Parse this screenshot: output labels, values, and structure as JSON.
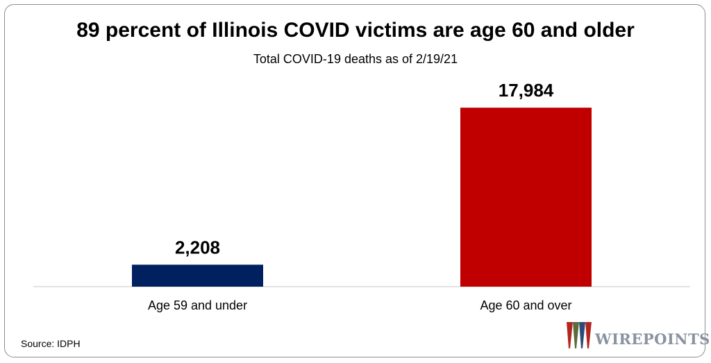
{
  "title": "89 percent of Illinois COVID victims are age 60 and older",
  "subtitle": "Total COVID-19 deaths as of 2/19/21",
  "source": "Source: IDPH",
  "logo": {
    "text": "WIREPOINTS",
    "colors": [
      "#b3261e",
      "#5c6b3a",
      "#2e4a7a"
    ]
  },
  "chart_data": {
    "type": "bar",
    "categories": [
      "Age 59 and under",
      "Age 60 and over"
    ],
    "values": [
      2208,
      17984
    ],
    "data_labels": [
      "2,208",
      "17,984"
    ],
    "colors": [
      "#002060",
      "#c00000"
    ],
    "title": "89 percent of Illinois COVID victims are age 60 and older",
    "subtitle": "Total COVID-19 deaths as of 2/19/21",
    "xlabel": "",
    "ylabel": "",
    "ylim": [
      0,
      18900
    ],
    "grid": false,
    "legend": "none"
  }
}
